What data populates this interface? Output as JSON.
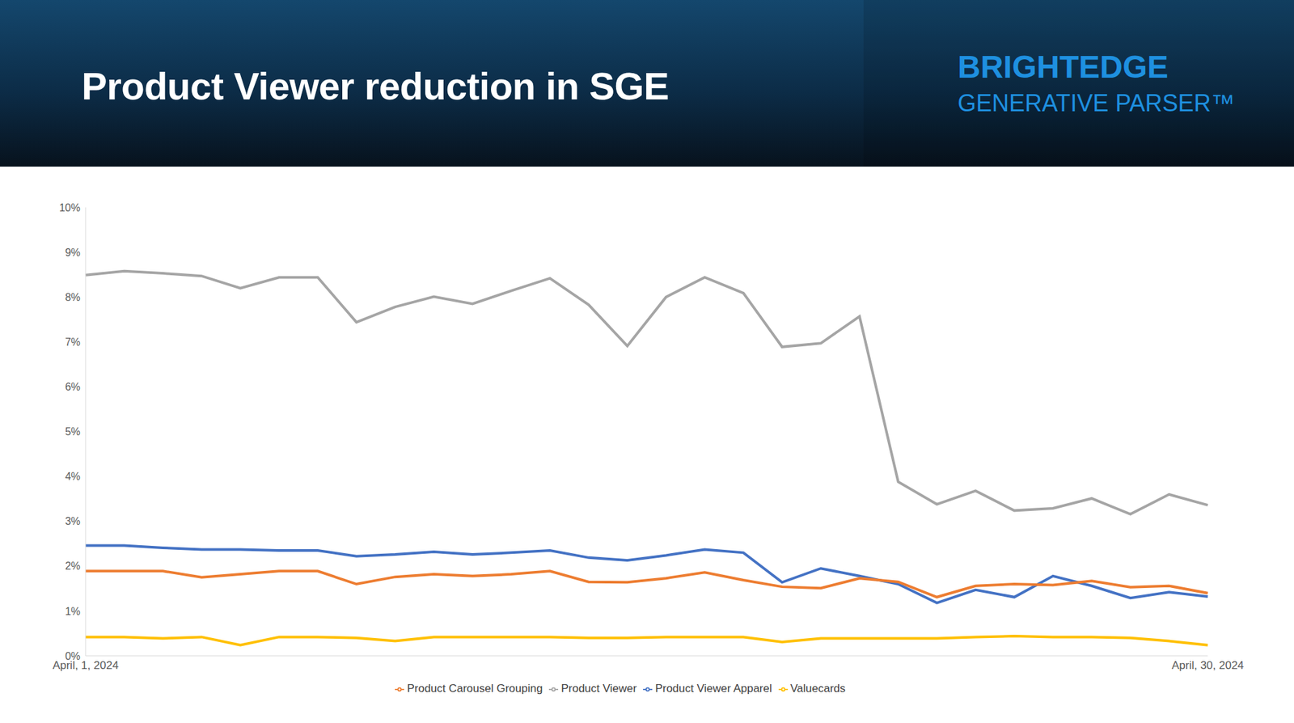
{
  "header": {
    "brand": "BRIGHTEDGE",
    "product": "GENERATIVE PARSER™"
  },
  "chart_data": {
    "type": "line",
    "title": "Product Viewer reduction in SGE",
    "categories": [
      "April, 1, 2024",
      null,
      null,
      null,
      null,
      null,
      null,
      null,
      null,
      null,
      null,
      null,
      null,
      null,
      null,
      null,
      null,
      null,
      null,
      null,
      null,
      null,
      null,
      null,
      null,
      null,
      null,
      null,
      null,
      "April, 30, 2024"
    ],
    "series": [
      {
        "name": "Product Viewer Apparel",
        "color": "#4472c4",
        "values": [
          2.46,
          2.46,
          2.41,
          2.37,
          2.37,
          2.35,
          2.35,
          2.22,
          2.26,
          2.32,
          2.26,
          2.3,
          2.35,
          2.19,
          2.13,
          2.24,
          2.37,
          2.3,
          1.64,
          1.95,
          1.78,
          1.6,
          1.18,
          1.47,
          1.31,
          1.78,
          1.56,
          1.29,
          1.42,
          1.32
        ]
      },
      {
        "name": "Product Carousel Grouping",
        "color": "#ed7d31",
        "values": [
          1.89,
          1.89,
          1.89,
          1.75,
          1.82,
          1.89,
          1.89,
          1.6,
          1.76,
          1.82,
          1.78,
          1.82,
          1.89,
          1.65,
          1.64,
          1.73,
          1.86,
          1.69,
          1.54,
          1.51,
          1.73,
          1.65,
          1.31,
          1.56,
          1.6,
          1.58,
          1.67,
          1.53,
          1.56,
          1.4
        ]
      },
      {
        "name": "Product Viewer",
        "color": "#a5a5a5",
        "values": [
          8.49,
          8.58,
          8.53,
          8.47,
          8.2,
          8.44,
          8.44,
          7.44,
          7.78,
          8.01,
          7.85,
          8.14,
          8.42,
          7.83,
          6.91,
          8.0,
          8.44,
          8.09,
          6.89,
          6.97,
          7.57,
          3.88,
          3.38,
          3.68,
          3.24,
          3.29,
          3.51,
          3.16,
          3.6,
          3.36
        ]
      },
      {
        "name": "Valuecards",
        "color": "#ffc000",
        "values": [
          0.42,
          0.42,
          0.39,
          0.42,
          0.24,
          0.42,
          0.42,
          0.4,
          0.33,
          0.42,
          0.42,
          0.42,
          0.42,
          0.4,
          0.4,
          0.42,
          0.42,
          0.42,
          0.31,
          0.39,
          0.39,
          0.39,
          0.39,
          0.42,
          0.44,
          0.42,
          0.42,
          0.4,
          0.33,
          0.24
        ]
      }
    ],
    "ylim": [
      0,
      10
    ],
    "yticks": [
      {
        "value": 0,
        "label": "0%"
      },
      {
        "value": 1,
        "label": "1%"
      },
      {
        "value": 2,
        "label": "2%"
      },
      {
        "value": 3,
        "label": "3%"
      },
      {
        "value": 4,
        "label": "4%"
      },
      {
        "value": 5,
        "label": "5%"
      },
      {
        "value": 6,
        "label": "6%"
      },
      {
        "value": 7,
        "label": "7%"
      },
      {
        "value": 8,
        "label": "8%"
      },
      {
        "value": 9,
        "label": "9%"
      },
      {
        "value": 10,
        "label": "10%"
      }
    ],
    "grid": false,
    "legend": "bottom"
  }
}
